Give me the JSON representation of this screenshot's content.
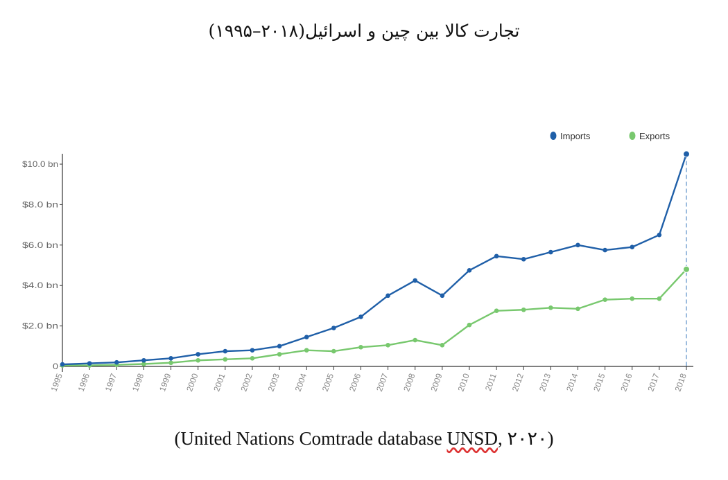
{
  "title": "تجارت کالا بین چین و اسرائیل(۲۰۱۸–۱۹۹۵)",
  "source": {
    "before": "(United Nations Comtrade database ",
    "underlined": "UNSD",
    "after": ", ۲۰۲۰)"
  },
  "chart_data": {
    "type": "line",
    "x": [
      "1995",
      "1996",
      "1997",
      "1998",
      "1999",
      "2000",
      "2001",
      "2002",
      "2003",
      "2004",
      "2005",
      "2006",
      "2007",
      "2008",
      "2009",
      "2010",
      "2011",
      "2012",
      "2013",
      "2014",
      "2015",
      "2016",
      "2017",
      "2018"
    ],
    "series": [
      {
        "name": "Imports",
        "color": "#1f5fa8",
        "values": [
          0.1,
          0.15,
          0.2,
          0.3,
          0.4,
          0.6,
          0.75,
          0.8,
          1.0,
          1.45,
          1.9,
          2.45,
          3.5,
          4.25,
          3.5,
          4.75,
          5.45,
          5.3,
          5.65,
          6.0,
          5.75,
          5.9,
          6.5,
          10.5
        ]
      },
      {
        "name": "Exports",
        "color": "#78c86e",
        "values": [
          0.05,
          0.05,
          0.08,
          0.12,
          0.18,
          0.3,
          0.35,
          0.4,
          0.6,
          0.8,
          0.75,
          0.95,
          1.05,
          1.3,
          1.05,
          2.05,
          2.75,
          2.8,
          2.9,
          2.85,
          3.3,
          3.35,
          3.35,
          4.8
        ]
      }
    ],
    "y_ticks": [
      "0",
      "$2.0 bn",
      "$4.0 bn",
      "$6.0 bn",
      "$8.0 bn",
      "$10.0 bn"
    ],
    "y_tick_values": [
      0,
      2,
      4,
      6,
      8,
      10
    ],
    "ylim": [
      0,
      10.4
    ],
    "ylabel": "",
    "xlabel": "",
    "legend_position": "top-right",
    "grid": false,
    "crosshair_at": "2018"
  }
}
